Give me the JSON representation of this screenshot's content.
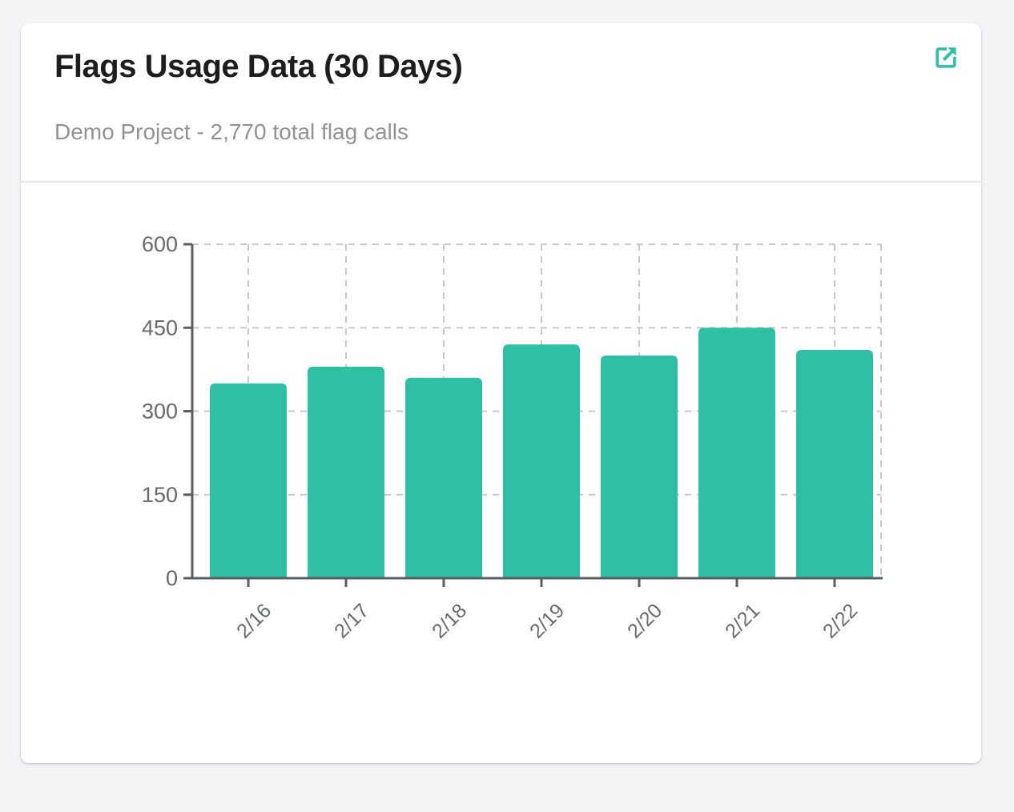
{
  "page": {
    "background_color": "#f4f4f6"
  },
  "card": {
    "title": "Flags Usage Data (30 Days)",
    "subtitle": "Demo Project - 2,770 total flag calls",
    "accent_color": "#2fbfa4",
    "icons": {
      "external_link": "external-link-icon"
    }
  },
  "chart_data": {
    "type": "bar",
    "title": "Flags Usage Data (30 Days)",
    "categories": [
      "2/16",
      "2/17",
      "2/18",
      "2/19",
      "2/20",
      "2/21",
      "2/22"
    ],
    "values": [
      350,
      380,
      360,
      420,
      400,
      450,
      410
    ],
    "total": 2770,
    "xlabel": "",
    "ylabel": "",
    "ylim": [
      0,
      600
    ],
    "yticks": [
      0,
      150,
      300,
      450,
      600
    ],
    "bar_color": "#2fbfa4",
    "grid": true,
    "gridline_color": "#c9c9cc",
    "axis_color": "#5b5d60",
    "tick_label_color": "#68696d",
    "legend": "none"
  }
}
